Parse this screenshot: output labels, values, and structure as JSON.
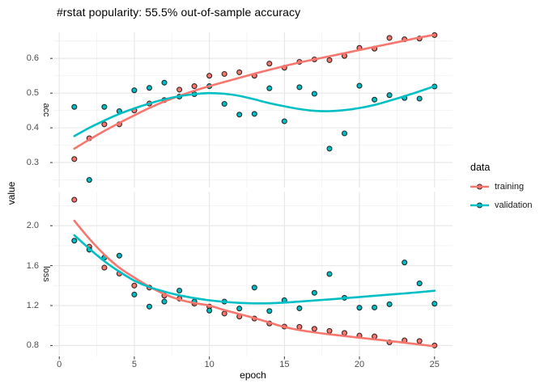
{
  "title": "#rstat popularity: 55.5% out-of-sample accuracy",
  "axes": {
    "x_label": "epoch",
    "y_label": "value",
    "xlim": [
      -0.39,
      26.2
    ],
    "x_tick_values": [
      0,
      5,
      10,
      15,
      20,
      25
    ],
    "x_tick_labels": [
      "0",
      "5",
      "10",
      "15",
      "20",
      "25"
    ],
    "x_minor_ticks": [
      2.5,
      7.5,
      12.5,
      17.5,
      22.5
    ]
  },
  "legend": {
    "title": "data",
    "items": [
      {
        "label": "training",
        "color": "#F8766D"
      },
      {
        "label": "validation",
        "color": "#00BFC4"
      }
    ]
  },
  "chart_data": [
    {
      "type": "scatter",
      "facet": "acc",
      "xlabel": "epoch",
      "ylabel": "value",
      "ylim": [
        0.228,
        0.675
      ],
      "y_tick_values": [
        0.6,
        0.5,
        0.4,
        0.3
      ],
      "y_tick_labels": [
        "0.6",
        "0.5",
        "0.4",
        "0.3"
      ],
      "y_minor_ticks": [
        0.65,
        0.55,
        0.45,
        0.35,
        0.25
      ],
      "x": [
        1,
        2,
        3,
        4,
        5,
        6,
        7,
        8,
        9,
        10,
        11,
        12,
        13,
        14,
        15,
        16,
        17,
        18,
        19,
        20,
        21,
        22,
        23,
        24,
        25
      ],
      "series": [
        {
          "name": "training",
          "color": "#F8766D",
          "points": [
            0.31,
            0.37,
            0.41,
            0.41,
            0.45,
            0.47,
            0.48,
            0.51,
            0.52,
            0.55,
            0.555,
            0.56,
            0.55,
            0.585,
            0.573,
            0.59,
            0.597,
            0.595,
            0.607,
            0.63,
            0.628,
            0.659,
            0.655,
            0.657,
            0.667
          ],
          "smooth": [
            0.34,
            0.366,
            0.391,
            0.414,
            0.436,
            0.457,
            0.476,
            0.492,
            0.507,
            0.52,
            0.532,
            0.544,
            0.556,
            0.567,
            0.578,
            0.588,
            0.597,
            0.606,
            0.615,
            0.624,
            0.633,
            0.642,
            0.651,
            0.66,
            0.668
          ]
        },
        {
          "name": "validation",
          "color": "#00BFC4",
          "points": [
            0.46,
            0.25,
            0.46,
            0.448,
            0.508,
            0.515,
            0.53,
            0.49,
            0.497,
            0.52,
            0.469,
            0.438,
            0.44,
            0.514,
            0.419,
            0.517,
            0.498,
            0.34,
            0.384,
            0.521,
            0.481,
            0.494,
            0.486,
            0.484,
            0.519
          ],
          "smooth": [
            0.376,
            0.4,
            0.421,
            0.44,
            0.456,
            0.47,
            0.482,
            0.491,
            0.497,
            0.5,
            0.498,
            0.492,
            0.482,
            0.471,
            0.462,
            0.454,
            0.449,
            0.448,
            0.451,
            0.457,
            0.466,
            0.478,
            0.491,
            0.505,
            0.52
          ]
        }
      ]
    },
    {
      "type": "scatter",
      "facet": "loss",
      "xlabel": "epoch",
      "ylabel": "value",
      "ylim": [
        0.69,
        2.342
      ],
      "y_tick_values": [
        2.0,
        1.6,
        1.2,
        0.8
      ],
      "y_tick_labels": [
        "2.0",
        "1.6",
        "1.2",
        "0.8"
      ],
      "y_minor_ticks": [
        2.2,
        1.8,
        1.4,
        1.0
      ],
      "x": [
        1,
        2,
        3,
        4,
        5,
        6,
        7,
        8,
        9,
        10,
        11,
        12,
        13,
        14,
        15,
        16,
        17,
        18,
        19,
        20,
        21,
        22,
        23,
        24,
        25
      ],
      "series": [
        {
          "name": "training",
          "color": "#F8766D",
          "points": [
            2.26,
            1.79,
            1.58,
            1.52,
            1.4,
            1.38,
            1.3,
            1.27,
            1.22,
            1.19,
            1.12,
            1.09,
            1.07,
            1.02,
            0.99,
            0.986,
            0.967,
            0.946,
            0.926,
            0.899,
            0.891,
            0.832,
            0.851,
            0.845,
            0.8
          ],
          "smooth": [
            2.05,
            1.87,
            1.71,
            1.58,
            1.48,
            1.39,
            1.315,
            1.26,
            1.225,
            1.2,
            1.155,
            1.115,
            1.075,
            1.03,
            0.985,
            0.955,
            0.932,
            0.912,
            0.895,
            0.878,
            0.862,
            0.845,
            0.828,
            0.81,
            0.792
          ]
        },
        {
          "name": "validation",
          "color": "#00BFC4",
          "points": [
            1.85,
            1.76,
            1.68,
            1.7,
            1.31,
            1.19,
            1.24,
            1.35,
            1.24,
            1.15,
            1.24,
            1.17,
            1.38,
            1.145,
            1.254,
            1.173,
            1.327,
            1.516,
            1.278,
            1.178,
            1.181,
            1.213,
            1.632,
            1.422,
            1.219
          ],
          "smooth": [
            1.905,
            1.77,
            1.645,
            1.54,
            1.45,
            1.385,
            1.34,
            1.303,
            1.275,
            1.253,
            1.237,
            1.227,
            1.222,
            1.223,
            1.23,
            1.24,
            1.251,
            1.262,
            1.274,
            1.286,
            1.298,
            1.31,
            1.322,
            1.335,
            1.348
          ]
        }
      ]
    }
  ]
}
